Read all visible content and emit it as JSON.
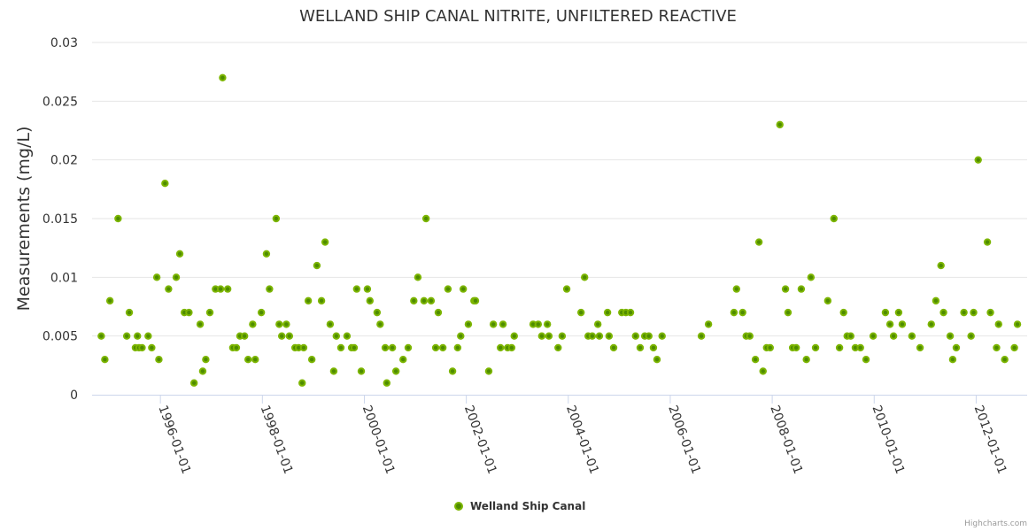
{
  "chart_data": {
    "type": "scatter",
    "title": "WELLAND SHIP CANAL NITRITE, UNFILTERED REACTIVE",
    "xlabel": "",
    "ylabel": "Measurements (mg/L)",
    "xlim": [
      1994.66,
      2013.0
    ],
    "ylim": [
      0,
      0.03
    ],
    "grid": true,
    "legend_position": "bottom-center",
    "x_ticks": [
      {
        "value": 1996,
        "label": "1996-01-01"
      },
      {
        "value": 1998,
        "label": "1998-01-01"
      },
      {
        "value": 2000,
        "label": "2000-01-01"
      },
      {
        "value": 2002,
        "label": "2002-01-01"
      },
      {
        "value": 2004,
        "label": "2004-01-01"
      },
      {
        "value": 2006,
        "label": "2006-01-01"
      },
      {
        "value": 2008,
        "label": "2008-01-01"
      },
      {
        "value": 2010,
        "label": "2010-01-01"
      },
      {
        "value": 2012,
        "label": "2012-01-01"
      }
    ],
    "y_ticks": [
      {
        "value": 0,
        "label": "0"
      },
      {
        "value": 0.005,
        "label": "0.005"
      },
      {
        "value": 0.01,
        "label": "0.01"
      },
      {
        "value": 0.015,
        "label": "0.015"
      },
      {
        "value": 0.02,
        "label": "0.02"
      },
      {
        "value": 0.025,
        "label": "0.025"
      },
      {
        "value": 0.03,
        "label": "0.03"
      }
    ],
    "series": [
      {
        "name": "Welland Ship Canal",
        "color": "#7cb500",
        "points": [
          [
            1994.84,
            0.005
          ],
          [
            1994.91,
            0.003
          ],
          [
            1995.01,
            0.008
          ],
          [
            1995.17,
            0.015
          ],
          [
            1995.34,
            0.005
          ],
          [
            1995.39,
            0.007
          ],
          [
            1995.51,
            0.004
          ],
          [
            1995.55,
            0.005
          ],
          [
            1995.58,
            0.004
          ],
          [
            1995.64,
            0.004
          ],
          [
            1995.76,
            0.005
          ],
          [
            1995.83,
            0.004
          ],
          [
            1995.93,
            0.01
          ],
          [
            1995.97,
            0.003
          ],
          [
            1996.09,
            0.018
          ],
          [
            1996.16,
            0.009
          ],
          [
            1996.31,
            0.01
          ],
          [
            1996.38,
            0.012
          ],
          [
            1996.47,
            0.007
          ],
          [
            1996.56,
            0.007
          ],
          [
            1996.66,
            0.001
          ],
          [
            1996.78,
            0.006
          ],
          [
            1996.83,
            0.002
          ],
          [
            1996.89,
            0.003
          ],
          [
            1996.97,
            0.007
          ],
          [
            1997.08,
            0.009
          ],
          [
            1997.18,
            0.009
          ],
          [
            1997.22,
            0.027
          ],
          [
            1997.32,
            0.009
          ],
          [
            1997.42,
            0.004
          ],
          [
            1997.49,
            0.004
          ],
          [
            1997.56,
            0.005
          ],
          [
            1997.65,
            0.005
          ],
          [
            1997.72,
            0.003
          ],
          [
            1997.81,
            0.006
          ],
          [
            1997.86,
            0.003
          ],
          [
            1997.98,
            0.007
          ],
          [
            1998.08,
            0.012
          ],
          [
            1998.14,
            0.009
          ],
          [
            1998.27,
            0.015
          ],
          [
            1998.33,
            0.006
          ],
          [
            1998.38,
            0.005
          ],
          [
            1998.47,
            0.006
          ],
          [
            1998.53,
            0.005
          ],
          [
            1998.64,
            0.004
          ],
          [
            1998.71,
            0.004
          ],
          [
            1998.78,
            0.001
          ],
          [
            1998.81,
            0.004
          ],
          [
            1998.9,
            0.008
          ],
          [
            1998.97,
            0.003
          ],
          [
            1999.07,
            0.011
          ],
          [
            1999.16,
            0.008
          ],
          [
            1999.23,
            0.013
          ],
          [
            1999.33,
            0.006
          ],
          [
            1999.4,
            0.002
          ],
          [
            1999.45,
            0.005
          ],
          [
            1999.54,
            0.004
          ],
          [
            1999.66,
            0.005
          ],
          [
            1999.75,
            0.004
          ],
          [
            1999.8,
            0.004
          ],
          [
            1999.85,
            0.009
          ],
          [
            1999.94,
            0.002
          ],
          [
            2000.06,
            0.009
          ],
          [
            2000.11,
            0.008
          ],
          [
            2000.25,
            0.007
          ],
          [
            2000.31,
            0.006
          ],
          [
            2000.41,
            0.004
          ],
          [
            2000.44,
            0.001
          ],
          [
            2000.55,
            0.004
          ],
          [
            2000.62,
            0.002
          ],
          [
            2000.76,
            0.003
          ],
          [
            2000.86,
            0.004
          ],
          [
            2000.97,
            0.008
          ],
          [
            2001.05,
            0.01
          ],
          [
            2001.17,
            0.008
          ],
          [
            2001.21,
            0.015
          ],
          [
            2001.31,
            0.008
          ],
          [
            2001.4,
            0.004
          ],
          [
            2001.45,
            0.007
          ],
          [
            2001.54,
            0.004
          ],
          [
            2001.64,
            0.009
          ],
          [
            2001.73,
            0.002
          ],
          [
            2001.83,
            0.004
          ],
          [
            2001.89,
            0.005
          ],
          [
            2001.94,
            0.009
          ],
          [
            2002.04,
            0.006
          ],
          [
            2002.15,
            0.008
          ],
          [
            2002.18,
            0.008
          ],
          [
            2002.44,
            0.002
          ],
          [
            2002.53,
            0.006
          ],
          [
            2002.67,
            0.004
          ],
          [
            2002.72,
            0.006
          ],
          [
            2002.81,
            0.004
          ],
          [
            2002.89,
            0.004
          ],
          [
            2002.94,
            0.005
          ],
          [
            2003.31,
            0.006
          ],
          [
            2003.41,
            0.006
          ],
          [
            2003.48,
            0.005
          ],
          [
            2003.59,
            0.006
          ],
          [
            2003.62,
            0.005
          ],
          [
            2003.8,
            0.004
          ],
          [
            2003.88,
            0.005
          ],
          [
            2003.97,
            0.009
          ],
          [
            2004.25,
            0.007
          ],
          [
            2004.32,
            0.01
          ],
          [
            2004.39,
            0.005
          ],
          [
            2004.47,
            0.005
          ],
          [
            2004.58,
            0.006
          ],
          [
            2004.61,
            0.005
          ],
          [
            2004.77,
            0.007
          ],
          [
            2004.8,
            0.005
          ],
          [
            2004.89,
            0.004
          ],
          [
            2005.05,
            0.007
          ],
          [
            2005.13,
            0.007
          ],
          [
            2005.22,
            0.007
          ],
          [
            2005.32,
            0.005
          ],
          [
            2005.41,
            0.004
          ],
          [
            2005.5,
            0.005
          ],
          [
            2005.58,
            0.005
          ],
          [
            2005.67,
            0.004
          ],
          [
            2005.74,
            0.003
          ],
          [
            2005.84,
            0.005
          ],
          [
            2006.61,
            0.005
          ],
          [
            2006.75,
            0.006
          ],
          [
            2007.25,
            0.007
          ],
          [
            2007.3,
            0.009
          ],
          [
            2007.42,
            0.007
          ],
          [
            2007.49,
            0.005
          ],
          [
            2007.56,
            0.005
          ],
          [
            2007.67,
            0.003
          ],
          [
            2007.74,
            0.013
          ],
          [
            2007.82,
            0.002
          ],
          [
            2007.89,
            0.004
          ],
          [
            2007.96,
            0.004
          ],
          [
            2008.15,
            0.023
          ],
          [
            2008.26,
            0.009
          ],
          [
            2008.31,
            0.007
          ],
          [
            2008.4,
            0.004
          ],
          [
            2008.47,
            0.004
          ],
          [
            2008.57,
            0.009
          ],
          [
            2008.67,
            0.003
          ],
          [
            2008.76,
            0.01
          ],
          [
            2008.85,
            0.004
          ],
          [
            2009.09,
            0.008
          ],
          [
            2009.21,
            0.015
          ],
          [
            2009.32,
            0.004
          ],
          [
            2009.4,
            0.007
          ],
          [
            2009.47,
            0.005
          ],
          [
            2009.54,
            0.005
          ],
          [
            2009.63,
            0.004
          ],
          [
            2009.73,
            0.004
          ],
          [
            2009.84,
            0.003
          ],
          [
            2009.98,
            0.005
          ],
          [
            2010.22,
            0.007
          ],
          [
            2010.31,
            0.006
          ],
          [
            2010.38,
            0.005
          ],
          [
            2010.48,
            0.007
          ],
          [
            2010.55,
            0.006
          ],
          [
            2010.74,
            0.005
          ],
          [
            2010.9,
            0.004
          ],
          [
            2011.12,
            0.006
          ],
          [
            2011.21,
            0.008
          ],
          [
            2011.31,
            0.011
          ],
          [
            2011.36,
            0.007
          ],
          [
            2011.49,
            0.005
          ],
          [
            2011.54,
            0.003
          ],
          [
            2011.61,
            0.004
          ],
          [
            2011.76,
            0.007
          ],
          [
            2011.9,
            0.005
          ],
          [
            2011.95,
            0.007
          ],
          [
            2012.04,
            0.02
          ],
          [
            2012.22,
            0.013
          ],
          [
            2012.28,
            0.007
          ],
          [
            2012.4,
            0.004
          ],
          [
            2012.44,
            0.006
          ],
          [
            2012.56,
            0.003
          ],
          [
            2012.75,
            0.004
          ],
          [
            2012.81,
            0.006
          ]
        ]
      }
    ]
  },
  "credits": "Highcharts.com"
}
